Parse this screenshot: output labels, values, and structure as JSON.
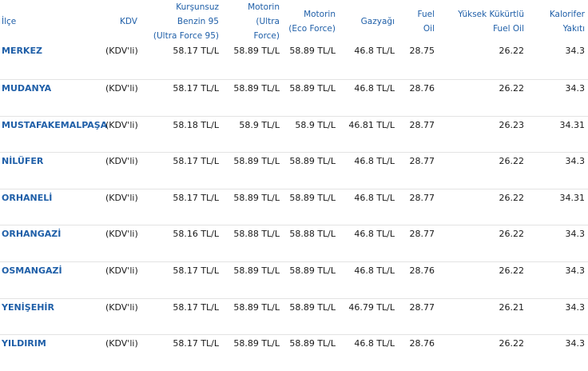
{
  "columns": [
    {
      "key": "ilce",
      "lines": [
        "İlçe"
      ]
    },
    {
      "key": "kdv",
      "lines": [
        "KDV"
      ]
    },
    {
      "key": "kursunsuz",
      "lines": [
        "Kurşunsuz",
        "Benzin 95",
        "(Ultra Force 95)"
      ]
    },
    {
      "key": "motorin_ultra",
      "lines": [
        "Motorin",
        "(Ultra",
        "Force)"
      ]
    },
    {
      "key": "motorin_eco",
      "lines": [
        "Motorin",
        "(Eco Force)"
      ]
    },
    {
      "key": "gazyagi",
      "lines": [
        "Gazyağı"
      ]
    },
    {
      "key": "fuel_oil",
      "lines": [
        "Fuel",
        "Oil"
      ]
    },
    {
      "key": "yuksek_kukurtlu",
      "lines": [
        "Yüksek Kükürtlü",
        "Fuel Oil"
      ]
    },
    {
      "key": "kalorifer",
      "lines": [
        "Kalorifer",
        "Yakıtı"
      ]
    }
  ],
  "rows": [
    {
      "ilce": "MERKEZ",
      "kdv": "(KDV'li)",
      "kursunsuz": "58.17 TL/L",
      "motorin_ultra": "58.89 TL/L",
      "motorin_eco": "58.89 TL/L",
      "gazyagi": "46.8 TL/L",
      "fuel_oil": "28.75",
      "yuksek_kukurtlu": "26.22",
      "kalorifer": "34.3"
    },
    {
      "ilce": "MUDANYA",
      "kdv": "(KDV'li)",
      "kursunsuz": "58.17 TL/L",
      "motorin_ultra": "58.89 TL/L",
      "motorin_eco": "58.89 TL/L",
      "gazyagi": "46.8 TL/L",
      "fuel_oil": "28.76",
      "yuksek_kukurtlu": "26.22",
      "kalorifer": "34.3"
    },
    {
      "ilce": "MUSTAFAKEMALPAŞA",
      "kdv": "(KDV'li)",
      "kursunsuz": "58.18 TL/L",
      "motorin_ultra": "58.9 TL/L",
      "motorin_eco": "58.9 TL/L",
      "gazyagi": "46.81 TL/L",
      "fuel_oil": "28.77",
      "yuksek_kukurtlu": "26.23",
      "kalorifer": "34.31"
    },
    {
      "ilce": "NİLÜFER",
      "kdv": "(KDV'li)",
      "kursunsuz": "58.17 TL/L",
      "motorin_ultra": "58.89 TL/L",
      "motorin_eco": "58.89 TL/L",
      "gazyagi": "46.8 TL/L",
      "fuel_oil": "28.77",
      "yuksek_kukurtlu": "26.22",
      "kalorifer": "34.3"
    },
    {
      "ilce": "ORHANELİ",
      "kdv": "(KDV'li)",
      "kursunsuz": "58.17 TL/L",
      "motorin_ultra": "58.89 TL/L",
      "motorin_eco": "58.89 TL/L",
      "gazyagi": "46.8 TL/L",
      "fuel_oil": "28.77",
      "yuksek_kukurtlu": "26.22",
      "kalorifer": "34.31"
    },
    {
      "ilce": "ORHANGAZİ",
      "kdv": "(KDV'li)",
      "kursunsuz": "58.16 TL/L",
      "motorin_ultra": "58.88 TL/L",
      "motorin_eco": "58.88 TL/L",
      "gazyagi": "46.8 TL/L",
      "fuel_oil": "28.77",
      "yuksek_kukurtlu": "26.22",
      "kalorifer": "34.3"
    },
    {
      "ilce": "OSMANGAZİ",
      "kdv": "(KDV'li)",
      "kursunsuz": "58.17 TL/L",
      "motorin_ultra": "58.89 TL/L",
      "motorin_eco": "58.89 TL/L",
      "gazyagi": "46.8 TL/L",
      "fuel_oil": "28.76",
      "yuksek_kukurtlu": "26.22",
      "kalorifer": "34.3"
    },
    {
      "ilce": "YENİŞEHİR",
      "kdv": "(KDV'li)",
      "kursunsuz": "58.17 TL/L",
      "motorin_ultra": "58.89 TL/L",
      "motorin_eco": "58.89 TL/L",
      "gazyagi": "46.79 TL/L",
      "fuel_oil": "28.77",
      "yuksek_kukurtlu": "26.21",
      "kalorifer": "34.3"
    },
    {
      "ilce": "YILDIRIM",
      "kdv": "(KDV'li)",
      "kursunsuz": "58.17 TL/L",
      "motorin_ultra": "58.89 TL/L",
      "motorin_eco": "58.89 TL/L",
      "gazyagi": "46.8 TL/L",
      "fuel_oil": "28.76",
      "yuksek_kukurtlu": "26.22",
      "kalorifer": "34.3"
    }
  ],
  "colors": {
    "header_text": "#1f5fa8",
    "district_text": "#1f5fa8",
    "row_divider": "#e3e3e3"
  }
}
